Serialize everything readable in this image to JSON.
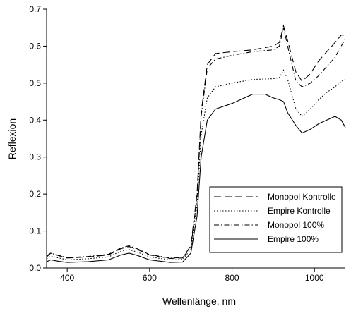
{
  "chart_data": {
    "type": "line",
    "title": "",
    "xlabel": "Wellenlänge, nm",
    "ylabel": "Reflexion",
    "xlim": [
      350,
      1075
    ],
    "ylim": [
      0.0,
      0.7
    ],
    "x_ticks": [
      400,
      600,
      800,
      1000
    ],
    "x_tick_labels": [
      "400",
      "600",
      "800",
      "1000"
    ],
    "y_ticks": [
      0.0,
      0.1,
      0.2,
      0.3,
      0.4,
      0.5,
      0.6,
      0.7
    ],
    "y_tick_labels": [
      "0.0",
      "0.1",
      "0.2",
      "0.3",
      "0.4",
      "0.5",
      "0.6",
      "0.7"
    ],
    "grid": false,
    "legend_position": "lower-right",
    "series": [
      {
        "name": "Monopol Kontrolle",
        "style": "dashed",
        "color": "#000000",
        "points": [
          [
            350,
            0.03
          ],
          [
            360,
            0.04
          ],
          [
            380,
            0.033
          ],
          [
            400,
            0.027
          ],
          [
            450,
            0.03
          ],
          [
            500,
            0.035
          ],
          [
            530,
            0.052
          ],
          [
            550,
            0.058
          ],
          [
            570,
            0.05
          ],
          [
            600,
            0.035
          ],
          [
            650,
            0.026
          ],
          [
            680,
            0.027
          ],
          [
            700,
            0.06
          ],
          [
            715,
            0.2
          ],
          [
            725,
            0.42
          ],
          [
            740,
            0.55
          ],
          [
            760,
            0.58
          ],
          [
            800,
            0.585
          ],
          [
            850,
            0.59
          ],
          [
            900,
            0.6
          ],
          [
            915,
            0.61
          ],
          [
            925,
            0.655
          ],
          [
            935,
            0.615
          ],
          [
            955,
            0.53
          ],
          [
            970,
            0.505
          ],
          [
            990,
            0.525
          ],
          [
            1010,
            0.56
          ],
          [
            1030,
            0.585
          ],
          [
            1050,
            0.61
          ],
          [
            1065,
            0.63
          ],
          [
            1075,
            0.63
          ]
        ]
      },
      {
        "name": "Empire Kontrolle",
        "style": "dotted",
        "color": "#000000",
        "points": [
          [
            350,
            0.025
          ],
          [
            360,
            0.032
          ],
          [
            380,
            0.027
          ],
          [
            400,
            0.022
          ],
          [
            450,
            0.025
          ],
          [
            500,
            0.03
          ],
          [
            530,
            0.045
          ],
          [
            550,
            0.05
          ],
          [
            570,
            0.043
          ],
          [
            600,
            0.03
          ],
          [
            650,
            0.022
          ],
          [
            680,
            0.023
          ],
          [
            700,
            0.05
          ],
          [
            715,
            0.17
          ],
          [
            725,
            0.36
          ],
          [
            740,
            0.46
          ],
          [
            760,
            0.49
          ],
          [
            800,
            0.5
          ],
          [
            850,
            0.51
          ],
          [
            900,
            0.512
          ],
          [
            915,
            0.515
          ],
          [
            925,
            0.535
          ],
          [
            935,
            0.51
          ],
          [
            955,
            0.43
          ],
          [
            970,
            0.41
          ],
          [
            990,
            0.43
          ],
          [
            1010,
            0.455
          ],
          [
            1030,
            0.475
          ],
          [
            1050,
            0.49
          ],
          [
            1065,
            0.505
          ],
          [
            1075,
            0.51
          ]
        ]
      },
      {
        "name": "Monopol 100%",
        "style": "dash-dot",
        "color": "#000000",
        "points": [
          [
            350,
            0.033
          ],
          [
            360,
            0.04
          ],
          [
            380,
            0.034
          ],
          [
            400,
            0.028
          ],
          [
            450,
            0.031
          ],
          [
            500,
            0.037
          ],
          [
            530,
            0.054
          ],
          [
            550,
            0.06
          ],
          [
            570,
            0.052
          ],
          [
            600,
            0.036
          ],
          [
            650,
            0.027
          ],
          [
            680,
            0.028
          ],
          [
            700,
            0.055
          ],
          [
            715,
            0.19
          ],
          [
            725,
            0.41
          ],
          [
            740,
            0.54
          ],
          [
            760,
            0.565
          ],
          [
            800,
            0.575
          ],
          [
            850,
            0.585
          ],
          [
            900,
            0.59
          ],
          [
            915,
            0.6
          ],
          [
            925,
            0.65
          ],
          [
            935,
            0.6
          ],
          [
            955,
            0.505
          ],
          [
            970,
            0.49
          ],
          [
            990,
            0.5
          ],
          [
            1010,
            0.52
          ],
          [
            1030,
            0.545
          ],
          [
            1050,
            0.57
          ],
          [
            1065,
            0.6
          ],
          [
            1075,
            0.62
          ]
        ]
      },
      {
        "name": "Empire 100%",
        "style": "solid",
        "color": "#000000",
        "points": [
          [
            350,
            0.017
          ],
          [
            360,
            0.022
          ],
          [
            380,
            0.018
          ],
          [
            400,
            0.015
          ],
          [
            450,
            0.017
          ],
          [
            500,
            0.022
          ],
          [
            530,
            0.035
          ],
          [
            550,
            0.04
          ],
          [
            570,
            0.034
          ],
          [
            600,
            0.022
          ],
          [
            650,
            0.015
          ],
          [
            680,
            0.016
          ],
          [
            700,
            0.04
          ],
          [
            715,
            0.14
          ],
          [
            725,
            0.3
          ],
          [
            740,
            0.4
          ],
          [
            760,
            0.43
          ],
          [
            800,
            0.445
          ],
          [
            850,
            0.47
          ],
          [
            880,
            0.47
          ],
          [
            900,
            0.46
          ],
          [
            915,
            0.455
          ],
          [
            925,
            0.45
          ],
          [
            935,
            0.42
          ],
          [
            955,
            0.385
          ],
          [
            970,
            0.365
          ],
          [
            990,
            0.375
          ],
          [
            1010,
            0.39
          ],
          [
            1030,
            0.4
          ],
          [
            1050,
            0.41
          ],
          [
            1065,
            0.4
          ],
          [
            1075,
            0.38
          ]
        ]
      }
    ]
  }
}
